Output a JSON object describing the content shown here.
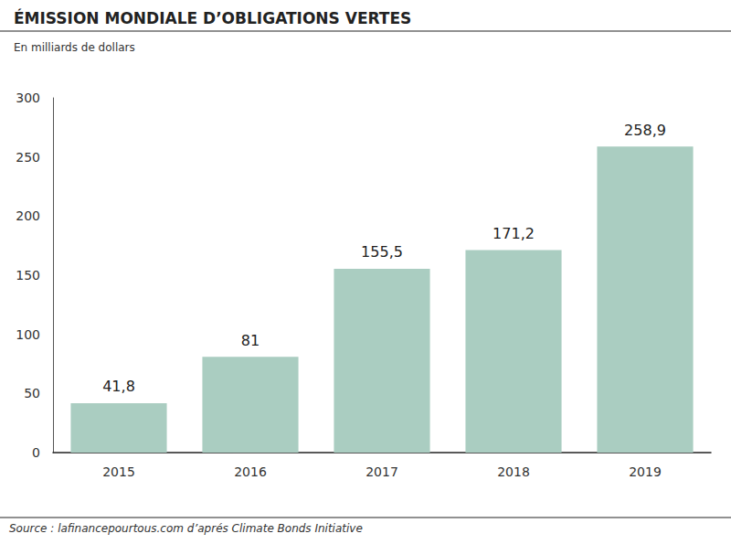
{
  "chart_data": {
    "type": "bar",
    "title": "ÉMISSION MONDIALE D’OBLIGATIONS VERTES",
    "subtitle": "En milliards de dollars",
    "source": "Source : lafinancepourtous.com d’aprés Climate Bonds Initiative",
    "categories": [
      "2015",
      "2016",
      "2017",
      "2018",
      "2019"
    ],
    "values": [
      41.8,
      81,
      155.5,
      171.2,
      258.9
    ],
    "value_labels": [
      "41,8",
      "81",
      "155,5",
      "171,2",
      "258,9"
    ],
    "color": "#aacdc1",
    "ylim": [
      0,
      300
    ],
    "yticks": [
      0,
      50,
      100,
      150,
      200,
      250,
      300
    ],
    "grid": false,
    "data_labels": true
  }
}
